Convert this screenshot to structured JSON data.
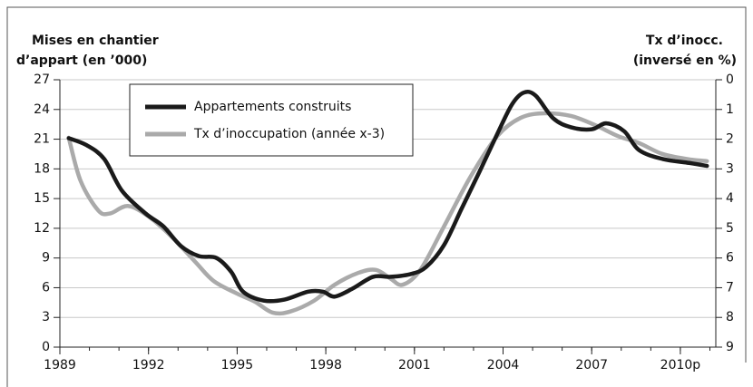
{
  "chart_data": {
    "type": "line",
    "ylabel": [
      "Mises en chantier",
      "d’appart (en ’000)"
    ],
    "y2label": [
      "Tx d’inocc.",
      "(inversé en %)"
    ],
    "xlim": [
      1989,
      2011.2
    ],
    "xticks": [
      1989,
      1992,
      1995,
      1998,
      2001,
      2004,
      2007,
      {
        "value": 2010,
        "label": "2010p"
      }
    ],
    "ylim": [
      0,
      27
    ],
    "yticks": [
      0,
      3,
      6,
      9,
      12,
      15,
      18,
      21,
      24,
      27
    ],
    "y2lim": [
      9,
      0
    ],
    "y2ticks": [
      0,
      1,
      2,
      3,
      4,
      5,
      6,
      7,
      8,
      9
    ],
    "grid": true,
    "legend": "top-left",
    "series": [
      {
        "name": "Appartements construits",
        "color": "#1a1a1a",
        "x": [
          1989.3,
          1989.9,
          1990.5,
          1991.1,
          1991.9,
          1992.5,
          1993.1,
          1993.7,
          1994.3,
          1994.8,
          1995.2,
          1995.9,
          1996.6,
          1997.4,
          1997.9,
          1998.3,
          1998.9,
          1999.6,
          2000.2,
          2000.9,
          2001.4,
          2002.0,
          2002.6,
          2003.2,
          2003.8,
          2004.3,
          2004.7,
          2005.1,
          2005.7,
          2006.3,
          2007.0,
          2007.5,
          2008.1,
          2008.6,
          2009.4,
          2010.3,
          2010.9
        ],
        "values": [
          21.1,
          20.4,
          19.0,
          15.8,
          13.5,
          12.2,
          10.2,
          9.2,
          9.0,
          7.6,
          5.6,
          4.7,
          4.8,
          5.6,
          5.6,
          5.1,
          5.9,
          7.1,
          7.1,
          7.4,
          8.1,
          10.3,
          14.0,
          17.7,
          21.5,
          24.5,
          25.7,
          25.4,
          23.1,
          22.2,
          22.0,
          22.6,
          21.8,
          19.9,
          19.0,
          18.6,
          18.3
        ]
      },
      {
        "name": "Tx d’inoccupation (année x-3)",
        "color": "#aaaaaa",
        "axis": "y2",
        "x": [
          1989.3,
          1989.7,
          1990.3,
          1990.7,
          1991.3,
          1992.0,
          1992.8,
          1993.6,
          1994.2,
          1995.0,
          1995.6,
          1996.2,
          1996.8,
          1997.6,
          1998.3,
          1999.1,
          1999.7,
          2000.2,
          2000.6,
          2001.2,
          2002.0,
          2002.9,
          2003.8,
          2004.6,
          2005.4,
          2006.3,
          2007.1,
          2007.9,
          2008.6,
          2009.4,
          2010.3,
          2010.9
        ],
        "values": [
          1.95,
          3.4,
          4.4,
          4.5,
          4.25,
          4.6,
          5.3,
          6.15,
          6.77,
          7.2,
          7.47,
          7.84,
          7.8,
          7.44,
          6.9,
          6.5,
          6.4,
          6.7,
          6.9,
          6.4,
          4.94,
          3.26,
          1.9,
          1.28,
          1.13,
          1.22,
          1.52,
          1.9,
          2.13,
          2.5,
          2.68,
          2.74
        ]
      }
    ]
  }
}
